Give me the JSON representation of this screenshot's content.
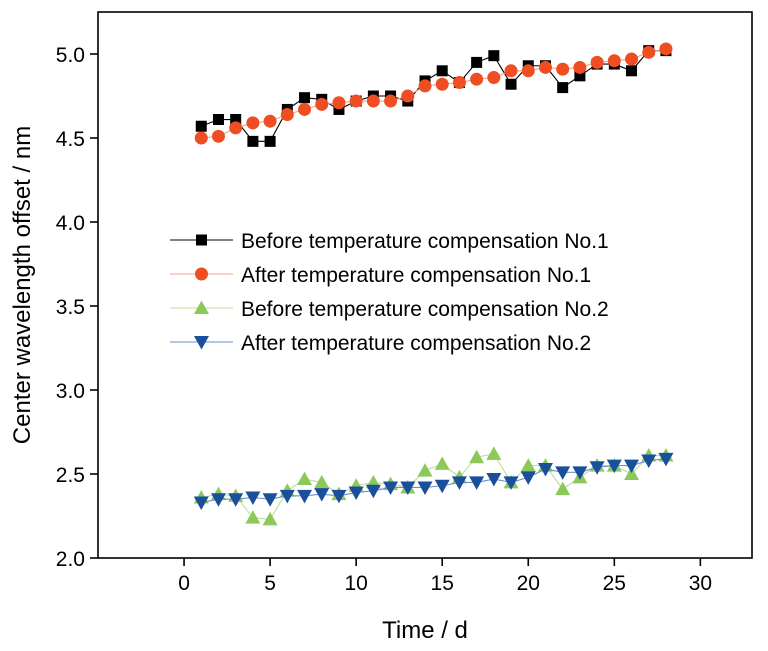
{
  "chart_data": {
    "type": "line",
    "xlabel": "Time / d",
    "ylabel": "Center wavelength offset / nm",
    "xlim": [
      -5,
      33
    ],
    "ylim": [
      2.0,
      5.25
    ],
    "xticks": [
      0,
      5,
      10,
      15,
      20,
      25,
      30
    ],
    "yticks": [
      2.0,
      2.5,
      3.0,
      3.5,
      4.0,
      4.5,
      5.0
    ],
    "xtick_labels": [
      "0",
      "5",
      "10",
      "15",
      "20",
      "25",
      "30"
    ],
    "ytick_labels": [
      "2.0",
      "2.5",
      "3.0",
      "3.5",
      "4.0",
      "4.5",
      "5.0"
    ],
    "grid": false,
    "legend_position": "center",
    "x": [
      1,
      2,
      3,
      4,
      5,
      6,
      7,
      8,
      9,
      10,
      11,
      12,
      13,
      14,
      15,
      16,
      17,
      18,
      19,
      20,
      21,
      22,
      23,
      24,
      25,
      26,
      27,
      28
    ],
    "series": [
      {
        "name": "Before temperature compensation No.1",
        "marker": "square",
        "color": "#000000",
        "line_color": "#000000",
        "values": [
          4.57,
          4.61,
          4.61,
          4.48,
          4.48,
          4.67,
          4.74,
          4.73,
          4.67,
          4.72,
          4.75,
          4.75,
          4.72,
          4.84,
          4.9,
          4.83,
          4.95,
          4.99,
          4.82,
          4.93,
          4.93,
          4.8,
          4.87,
          4.94,
          4.94,
          4.9,
          5.02,
          5.02
        ]
      },
      {
        "name": "After temperature compensation No.1",
        "marker": "circle",
        "color": "#ef4e23",
        "line_color": "#f4a088",
        "values": [
          4.5,
          4.51,
          4.56,
          4.59,
          4.6,
          4.64,
          4.67,
          4.7,
          4.71,
          4.72,
          4.72,
          4.72,
          4.75,
          4.81,
          4.82,
          4.83,
          4.85,
          4.86,
          4.9,
          4.9,
          4.92,
          4.91,
          4.92,
          4.95,
          4.96,
          4.97,
          5.01,
          5.03
        ]
      },
      {
        "name": "Before temperature compensation No.2",
        "marker": "triangle-up",
        "color": "#8dc95a",
        "line_color": "#b8e09a",
        "values": [
          2.36,
          2.38,
          2.37,
          2.24,
          2.23,
          2.4,
          2.47,
          2.45,
          2.38,
          2.43,
          2.45,
          2.44,
          2.42,
          2.52,
          2.56,
          2.48,
          2.6,
          2.62,
          2.45,
          2.55,
          2.55,
          2.41,
          2.48,
          2.55,
          2.55,
          2.5,
          2.61,
          2.61
        ]
      },
      {
        "name": "After temperature compensation No.2",
        "marker": "triangle-down",
        "color": "#1a4f9c",
        "line_color": "#6a8fc8",
        "values": [
          2.33,
          2.35,
          2.35,
          2.36,
          2.35,
          2.37,
          2.37,
          2.38,
          2.37,
          2.39,
          2.4,
          2.42,
          2.42,
          2.42,
          2.43,
          2.45,
          2.45,
          2.47,
          2.45,
          2.48,
          2.53,
          2.51,
          2.51,
          2.54,
          2.55,
          2.55,
          2.58,
          2.59
        ]
      }
    ]
  }
}
